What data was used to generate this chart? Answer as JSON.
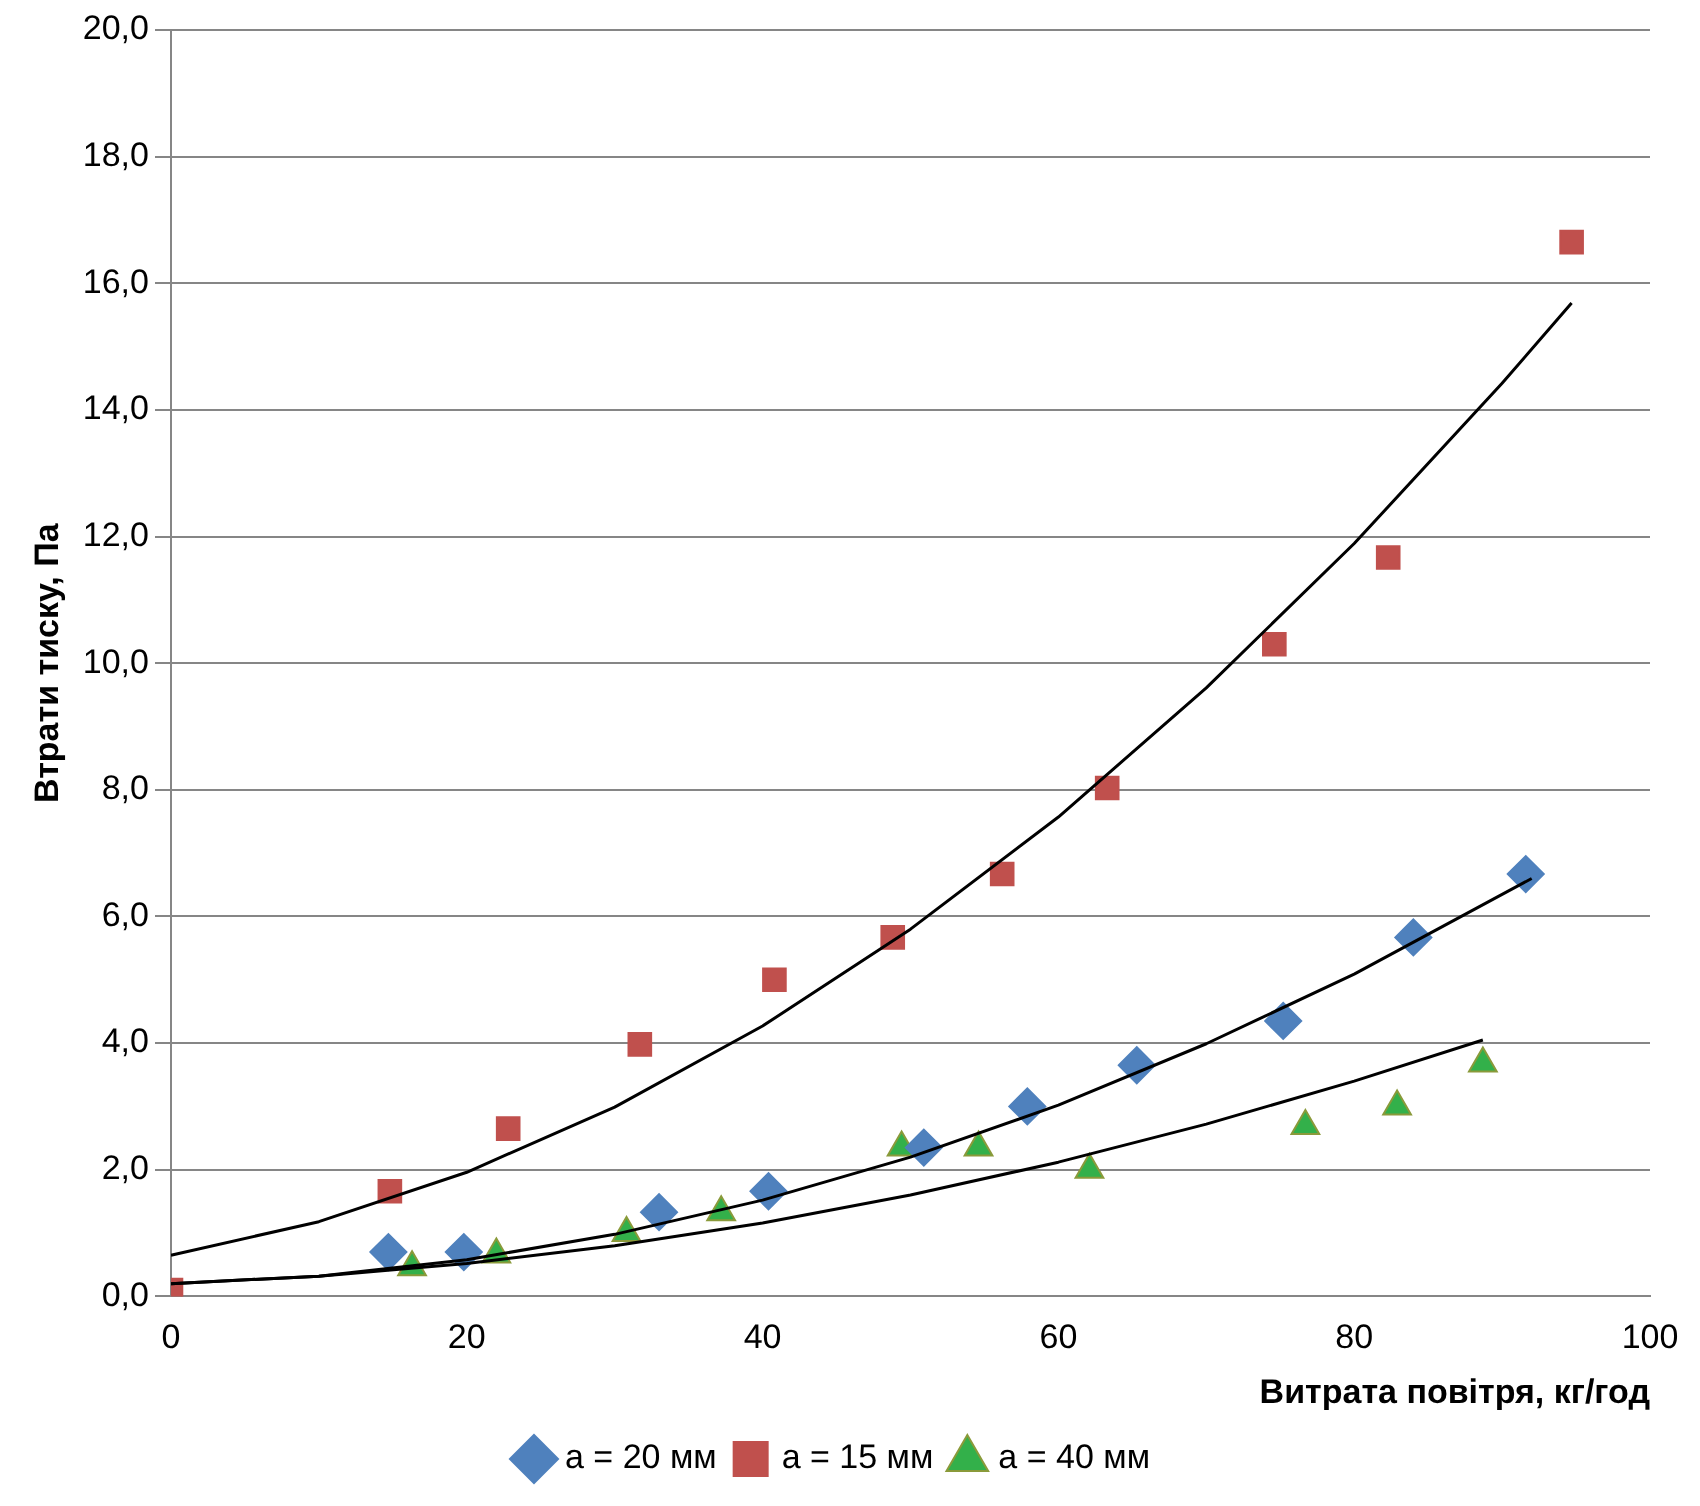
{
  "chart_data": {
    "type": "scatter",
    "xlabel": "Витрата повітря, кг/год",
    "ylabel": "Втрати тиску, Па",
    "xlim": [
      0,
      100
    ],
    "xticks": [
      0,
      20,
      40,
      60,
      80,
      100
    ],
    "ylim": [
      0,
      20
    ],
    "yticks": [
      {
        "value": 0,
        "label": "0,0"
      },
      {
        "value": 2,
        "label": "2,0"
      },
      {
        "value": 4,
        "label": "4,0"
      },
      {
        "value": 6,
        "label": "6,0"
      },
      {
        "value": 8,
        "label": "8,0"
      },
      {
        "value": 10,
        "label": "10,0"
      },
      {
        "value": 12,
        "label": "12,0"
      },
      {
        "value": 14,
        "label": "14,0"
      },
      {
        "value": 16,
        "label": "16,0"
      },
      {
        "value": 18,
        "label": "18,0"
      },
      {
        "value": 20,
        "label": "20,0"
      }
    ],
    "grid": "y",
    "legend": "bottom",
    "series": [
      {
        "name": "a = 20 мм",
        "color": "#4f81bd",
        "marker": "diamond",
        "x": [
          14.7,
          19.8,
          33,
          40.4,
          50.9,
          57.9,
          65.3,
          75.2,
          84,
          91.6
        ],
        "values": [
          0.7,
          0.7,
          1.33,
          1.66,
          2.35,
          3.0,
          3.65,
          4.35,
          5.67,
          6.67
        ]
      },
      {
        "name": "a = 15 мм",
        "color": "#c0504d",
        "marker": "square",
        "x": [
          0,
          14.8,
          22.8,
          31.7,
          40.8,
          48.8,
          56.2,
          63.3,
          74.6,
          82.3,
          94.7
        ],
        "values": [
          0.1,
          1.66,
          2.65,
          3.98,
          5.0,
          5.67,
          6.67,
          8.03,
          10.3,
          11.67,
          16.65
        ]
      },
      {
        "name": "a = 40 мм",
        "color": "#33b04a",
        "marker": "triangle",
        "x": [
          16.3,
          22,
          30.8,
          37.2,
          49.4,
          54.6,
          62.1,
          76.7,
          82.9,
          88.7
        ],
        "values": [
          0.46,
          0.66,
          1.0,
          1.33,
          2.35,
          2.35,
          2.0,
          2.69,
          3.0,
          3.68
        ]
      },
      {
        "type": "line",
        "color": "#000000",
        "marker": "none",
        "x": [
          0,
          10,
          20,
          30,
          40,
          50,
          60,
          70,
          80,
          90,
          94.7
        ],
        "values": [
          0.65,
          1.18,
          1.96,
          2.99,
          4.27,
          5.8,
          7.57,
          9.61,
          11.89,
          14.42,
          15.69
        ]
      },
      {
        "type": "line",
        "color": "#000000",
        "marker": "none",
        "x": [
          0,
          10,
          20,
          30,
          40,
          50,
          60,
          70,
          80,
          92
        ],
        "values": [
          0.2,
          0.32,
          0.58,
          0.98,
          1.52,
          2.2,
          3.02,
          3.99,
          5.09,
          6.6
        ]
      },
      {
        "type": "line",
        "color": "#000000",
        "marker": "none",
        "x": [
          0,
          10,
          20,
          30,
          40,
          50,
          60,
          70,
          80,
          88.7
        ],
        "values": [
          0.2,
          0.32,
          0.52,
          0.8,
          1.16,
          1.6,
          2.12,
          2.72,
          3.4,
          4.05
        ]
      }
    ]
  }
}
